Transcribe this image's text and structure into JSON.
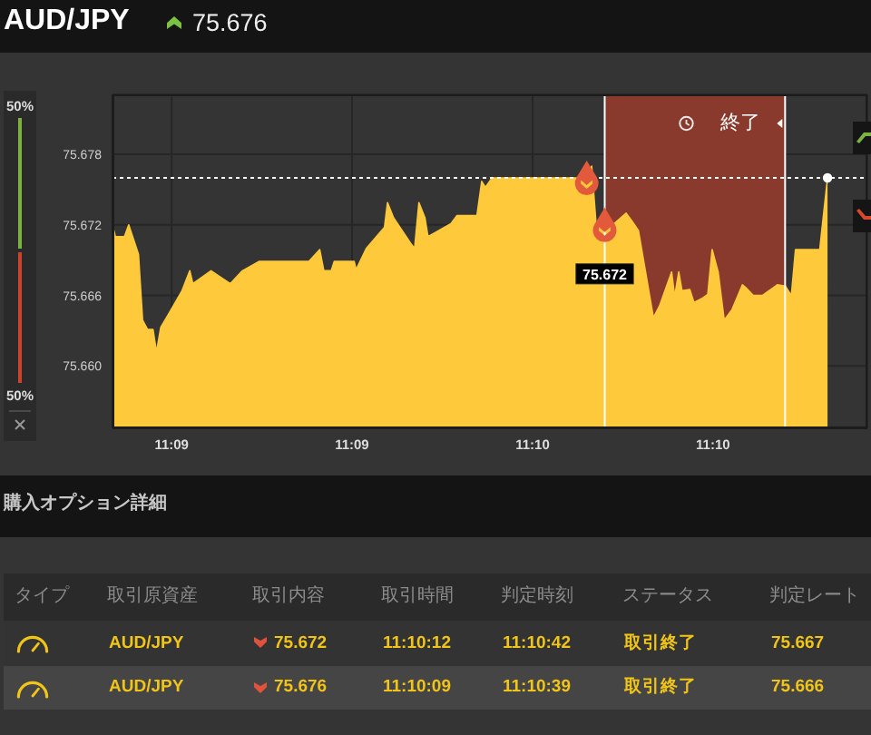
{
  "chart_data": [
    {
      "type": "area",
      "title": "AUD/JPY",
      "subtitle": "75.676",
      "xlim": [
        11.14727,
        11.18213
      ],
      "xticks": [
        {
          "value": 11.15,
          "label": "11:09"
        },
        {
          "value": 11.15833,
          "label": "11:09"
        },
        {
          "value": 11.16667,
          "label": "11:10"
        },
        {
          "value": 11.175,
          "label": "11:10"
        }
      ],
      "ylim": [
        75.6547,
        75.6831
      ],
      "yticks": [
        {
          "value": 75.66,
          "label": "75.660"
        },
        75.666,
        75.672,
        75.678
      ],
      "grid": true,
      "series": [
        {
          "type": "area",
          "color": "#ffc93c",
          "x": [
            11.14727,
            11.1474,
            11.14782,
            11.14802,
            11.14847,
            11.14866,
            11.14889,
            11.14914,
            11.1493,
            11.1495,
            11.14992,
            11.15048,
            11.15084,
            11.15098,
            11.15182,
            11.15271,
            11.15327,
            11.15405,
            11.15634,
            11.15684,
            11.15703,
            11.15737,
            11.15751,
            11.15843,
            11.15852,
            11.15899,
            11.15983,
            11.15997,
            11.16025,
            11.16109,
            11.16122,
            11.16142,
            11.1617,
            11.16184,
            11.1629,
            11.16318,
            11.1641,
            11.16432,
            11.16449,
            11.1648,
            11.16913,
            11.1694,
            11.1696,
            11.17043,
            11.17099,
            11.17127,
            11.17156,
            11.17225,
            11.17253,
            11.17309,
            11.17323,
            11.17342,
            11.17357,
            11.17393,
            11.17412,
            11.17454,
            11.17476,
            11.17496,
            11.17524,
            11.17552,
            11.17588,
            11.17636,
            11.1765,
            11.17686,
            11.17728,
            11.17797,
            11.17834,
            11.17862,
            11.17881,
            11.17993,
            11.18029
          ],
          "values": [
            75.672,
            75.671,
            75.671,
            75.672,
            75.6695,
            75.6639,
            75.6631,
            75.6631,
            75.6612,
            75.6633,
            75.6646,
            75.6664,
            75.6681,
            75.667,
            75.6681,
            75.667,
            75.6681,
            75.6689,
            75.6689,
            75.6699,
            75.6681,
            75.6681,
            75.6689,
            75.6689,
            75.6682,
            75.67,
            75.6718,
            75.6739,
            75.6726,
            75.6703,
            75.67,
            75.6739,
            75.6726,
            75.671,
            75.6721,
            75.6728,
            75.6728,
            75.6757,
            75.6752,
            75.676,
            75.676,
            75.677,
            75.6721,
            75.6721,
            75.673,
            75.6723,
            75.6715,
            75.6641,
            75.6651,
            75.668,
            75.6659,
            75.668,
            75.6664,
            75.6665,
            75.6654,
            75.6658,
            75.6661,
            75.6699,
            75.668,
            75.6639,
            75.6648,
            75.6669,
            75.6667,
            75.666,
            75.666,
            75.6669,
            75.6668,
            75.666,
            75.6699,
            75.6699,
            75.676
          ]
        },
        {
          "type": "scatter",
          "color": "#e25a3b",
          "x": [
            11.16917,
            11.17
          ],
          "values": [
            75.676,
            75.672
          ]
        },
        {
          "type": "scatter",
          "color": "#ffffff",
          "marker": "circle",
          "x": [
            11.18029
          ],
          "values": [
            75.676
          ]
        }
      ],
      "ref_lines": [
        {
          "axis": "y",
          "value": 75.676,
          "color": "#ffffff",
          "line_style": "dotted"
        },
        {
          "axis": "x",
          "value": 11.17,
          "color": "#ffffff"
        },
        {
          "axis": "x",
          "value": 11.17833,
          "color": "#ffffff"
        }
      ],
      "bands": [
        {
          "axis": "x",
          "from": 11.17,
          "to": 11.17833,
          "label": "終了",
          "color": "#8a3a2c"
        }
      ],
      "annotations": [
        {
          "text": "75.672",
          "x": 11.17,
          "y": 75.672
        }
      ]
    },
    {
      "type": "other",
      "values": [
        50,
        50
      ],
      "value_labels": [
        "50%",
        "50%"
      ],
      "colors": [
        "#79b23f",
        "#c9442b"
      ]
    },
    {
      "type": "other",
      "title": "購入オプション詳細",
      "categories": [
        "タイプ",
        "取引原資産",
        "取引内容",
        "取引時間",
        "判定時刻",
        "ステータス",
        "判定レート"
      ],
      "annotations": [
        "AUD/JPY",
        "75.672",
        "11:10:12",
        "11:10:42",
        "取引終了",
        "75.667",
        "AUD/JPY",
        "75.676",
        "11:10:09",
        "11:10:39",
        "取引終了",
        "75.666"
      ]
    }
  ]
}
